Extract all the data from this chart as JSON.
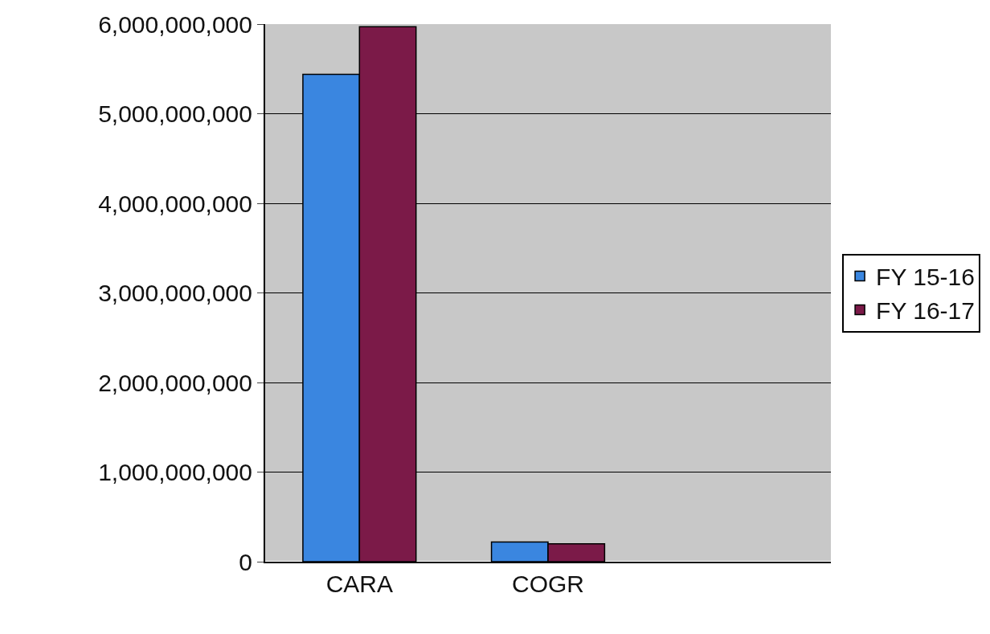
{
  "chart_data": {
    "type": "bar",
    "categories": [
      "CARA",
      "COGR",
      null
    ],
    "series": [
      {
        "name": "FY 15-16",
        "color": "#3a86e0",
        "values": [
          5440000000,
          220000000,
          null
        ]
      },
      {
        "name": "FY 16-17",
        "color": "#7b1a48",
        "values": [
          5970000000,
          200000000,
          null
        ]
      }
    ],
    "ylim": [
      0,
      6000000000
    ],
    "yticks": [
      {
        "value": 0,
        "label": "0"
      },
      {
        "value": 1000000000,
        "label": "1,000,000,000"
      },
      {
        "value": 2000000000,
        "label": "2,000,000,000"
      },
      {
        "value": 3000000000,
        "label": "3,000,000,000"
      },
      {
        "value": 4000000000,
        "label": "4,000,000,000"
      },
      {
        "value": 5000000000,
        "label": "5,000,000,000"
      },
      {
        "value": 6000000000,
        "label": "6,000,000,000"
      }
    ],
    "grid": "y",
    "legend": "right"
  }
}
